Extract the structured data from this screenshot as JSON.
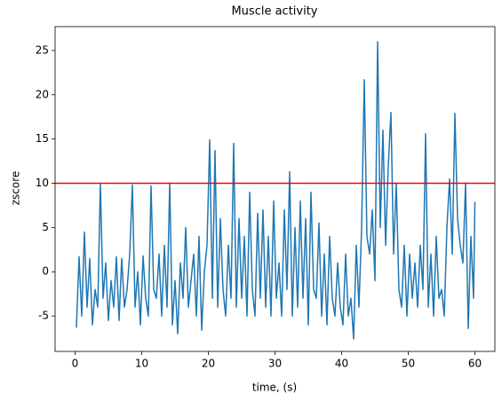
{
  "chart_data": {
    "type": "line",
    "title": "Muscle activity",
    "xlabel": "time, (s)",
    "ylabel": "zscore",
    "x": [
      0.2,
      0.6,
      1.0,
      1.4,
      1.8,
      2.2,
      2.6,
      3.0,
      3.4,
      3.8,
      4.2,
      4.6,
      5.0,
      5.4,
      5.8,
      6.2,
      6.6,
      7.0,
      7.4,
      7.8,
      8.2,
      8.6,
      9.0,
      9.4,
      9.8,
      10.2,
      10.6,
      11.0,
      11.4,
      11.8,
      12.2,
      12.6,
      13.0,
      13.4,
      13.8,
      14.2,
      14.6,
      15.0,
      15.4,
      15.8,
      16.2,
      16.6,
      17.0,
      17.4,
      17.8,
      18.2,
      18.6,
      19.0,
      19.4,
      19.8,
      20.2,
      20.6,
      21.0,
      21.4,
      21.8,
      22.2,
      22.6,
      23.0,
      23.4,
      23.8,
      24.2,
      24.6,
      25.0,
      25.4,
      25.8,
      26.2,
      26.6,
      27.0,
      27.4,
      27.8,
      28.2,
      28.6,
      29.0,
      29.4,
      29.8,
      30.2,
      30.6,
      31.0,
      31.4,
      31.8,
      32.2,
      32.6,
      33.0,
      33.4,
      33.8,
      34.2,
      34.6,
      35.0,
      35.4,
      35.8,
      36.2,
      36.6,
      37.0,
      37.4,
      37.8,
      38.2,
      38.6,
      39.0,
      39.4,
      39.8,
      40.2,
      40.6,
      41.0,
      41.4,
      41.8,
      42.2,
      42.6,
      43.0,
      43.4,
      43.8,
      44.2,
      44.6,
      45.0,
      45.4,
      45.8,
      46.2,
      46.6,
      47.0,
      47.4,
      47.8,
      48.2,
      48.6,
      49.0,
      49.4,
      49.8,
      50.2,
      50.6,
      51.0,
      51.4,
      51.8,
      52.2,
      52.6,
      53.0,
      53.4,
      53.8,
      54.2,
      54.6,
      55.0,
      55.4,
      55.8,
      56.2,
      56.6,
      57.0,
      57.4,
      57.8,
      58.2,
      58.6,
      59.0,
      59.4,
      59.8,
      60.0
    ],
    "values": [
      -6.3,
      1.7,
      -5,
      4.5,
      -4,
      1.5,
      -6,
      -2,
      -4,
      10,
      -3,
      1,
      -5.5,
      -1,
      -4,
      1.7,
      -5.5,
      1.5,
      -4,
      -2,
      2,
      9.8,
      -4,
      0,
      -6,
      1.8,
      -3,
      -5,
      9.7,
      -2,
      -3,
      2,
      -5,
      3,
      -4,
      10,
      -6,
      -1,
      -7,
      1,
      -3,
      5,
      -4,
      -1,
      2,
      -5,
      4,
      -6.6,
      0,
      3,
      14.9,
      -3,
      13.7,
      -4,
      6,
      -2,
      -5,
      3,
      -3,
      14.5,
      -4,
      6,
      -3,
      4,
      -5,
      9,
      -2,
      -5,
      6.6,
      -3,
      7,
      -4,
      4,
      -5,
      8,
      -3,
      1,
      -5,
      7,
      -2,
      11.3,
      -5,
      5,
      -4,
      8,
      -3,
      6,
      -6,
      9,
      -2,
      -3,
      5.5,
      -5,
      2,
      -6,
      4,
      -3,
      -5,
      1,
      -4,
      -6,
      2,
      -5,
      -3,
      -7.6,
      3,
      -4,
      5,
      21.7,
      4,
      2,
      7,
      -1,
      26,
      5,
      16,
      3,
      12,
      18,
      2,
      10,
      -2,
      -4,
      3,
      -5,
      2,
      -3,
      1,
      -4,
      3,
      -2,
      15.6,
      -4,
      2,
      -5,
      4,
      -3,
      -2,
      -5,
      5,
      10.5,
      2,
      17.9,
      6,
      3,
      1,
      10,
      -6.4,
      4,
      -3,
      7.9
    ],
    "color": "#1f77b4",
    "hline": {
      "value": 10,
      "color": "red"
    },
    "xlim": [
      -3,
      63
    ],
    "ylim": [
      -9,
      27.7
    ],
    "xticks": [
      0,
      10,
      20,
      30,
      40,
      50,
      60
    ],
    "yticks": [
      -5,
      0,
      5,
      10,
      15,
      20,
      25
    ]
  }
}
